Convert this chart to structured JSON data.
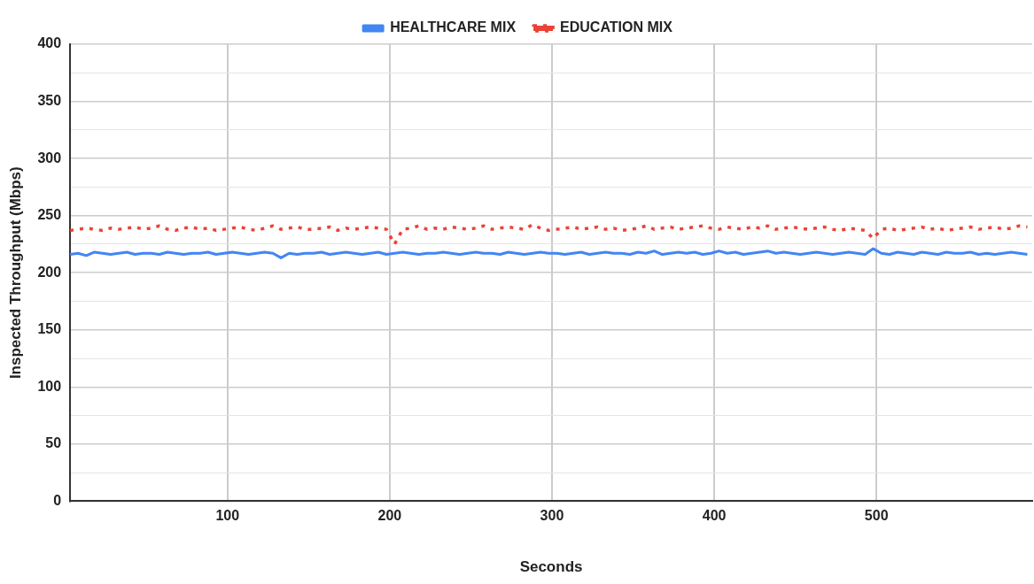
{
  "chart_data": {
    "type": "line",
    "xlabel": "Seconds",
    "ylabel": "Inspected Throughput (Mbps)",
    "x": [
      3,
      8,
      13,
      18,
      23,
      28,
      33,
      38,
      43,
      48,
      53,
      58,
      63,
      68,
      73,
      78,
      83,
      88,
      93,
      98,
      103,
      108,
      113,
      118,
      123,
      128,
      133,
      138,
      143,
      148,
      153,
      158,
      163,
      168,
      173,
      178,
      183,
      188,
      193,
      198,
      203,
      208,
      213,
      218,
      223,
      228,
      233,
      238,
      243,
      248,
      253,
      258,
      263,
      268,
      273,
      278,
      283,
      288,
      293,
      298,
      303,
      308,
      313,
      318,
      323,
      328,
      333,
      338,
      343,
      348,
      353,
      358,
      363,
      368,
      373,
      378,
      383,
      388,
      393,
      398,
      403,
      408,
      413,
      418,
      423,
      428,
      433,
      438,
      443,
      448,
      453,
      458,
      463,
      468,
      473,
      478,
      483,
      488,
      493,
      498,
      503,
      508,
      513,
      518,
      523,
      528,
      533,
      538,
      543,
      548,
      553,
      558,
      563,
      568,
      573,
      578,
      583,
      588,
      593
    ],
    "series": [
      {
        "name": "HEALTHCARE MIX",
        "color": "#4285f4",
        "line_style": "solid",
        "values": [
          216,
          217,
          215,
          218,
          217,
          216,
          217,
          218,
          216,
          217,
          217,
          216,
          218,
          217,
          216,
          217,
          217,
          218,
          216,
          217,
          218,
          217,
          216,
          217,
          218,
          217,
          213,
          217,
          216,
          217,
          217,
          218,
          216,
          217,
          218,
          217,
          216,
          217,
          218,
          216,
          217,
          218,
          217,
          216,
          217,
          217,
          218,
          217,
          216,
          217,
          218,
          217,
          217,
          216,
          218,
          217,
          216,
          217,
          218,
          217,
          217,
          216,
          217,
          218,
          216,
          217,
          218,
          217,
          217,
          216,
          218,
          217,
          219,
          216,
          217,
          218,
          217,
          218,
          216,
          217,
          219,
          217,
          218,
          216,
          217,
          218,
          219,
          217,
          218,
          217,
          216,
          217,
          218,
          217,
          216,
          217,
          218,
          217,
          216,
          221,
          217,
          216,
          218,
          217,
          216,
          218,
          217,
          216,
          218,
          217,
          217,
          218,
          216,
          217,
          216,
          217,
          218,
          217,
          216
        ]
      },
      {
        "name": "EDUCATION MIX",
        "color": "#ea4335",
        "line_style": "dotted",
        "values": [
          237,
          238,
          239,
          238,
          237,
          239,
          238,
          239,
          240,
          238,
          239,
          241,
          238,
          237,
          239,
          240,
          238,
          239,
          237,
          238,
          239,
          240,
          238,
          237,
          239,
          241,
          238,
          239,
          240,
          238,
          238,
          239,
          240,
          237,
          239,
          238,
          239,
          240,
          239,
          238,
          225,
          238,
          239,
          241,
          238,
          239,
          238,
          240,
          239,
          238,
          239,
          241,
          238,
          239,
          240,
          239,
          238,
          242,
          239,
          237,
          238,
          239,
          240,
          238,
          239,
          240,
          238,
          239,
          237,
          238,
          239,
          241,
          238,
          239,
          240,
          238,
          239,
          240,
          241,
          239,
          238,
          240,
          239,
          238,
          240,
          239,
          241,
          238,
          239,
          240,
          239,
          238,
          239,
          240,
          238,
          237,
          239,
          238,
          237,
          230,
          238,
          239,
          237,
          238,
          239,
          240,
          238,
          239,
          237,
          238,
          239,
          240,
          238,
          239,
          240,
          238,
          239,
          241,
          240
        ]
      }
    ],
    "xlim": [
      3,
      596
    ],
    "xticks": [
      100,
      200,
      300,
      400,
      500
    ],
    "ylim": [
      0,
      400
    ],
    "yticks": [
      0,
      {
        "value": 25,
        "label": null
      },
      50,
      {
        "value": 75,
        "label": null
      },
      100,
      {
        "value": 125,
        "label": null
      },
      150,
      {
        "value": 175,
        "label": null
      },
      200,
      {
        "value": 225,
        "label": null
      },
      250,
      {
        "value": 275,
        "label": null
      },
      300,
      {
        "value": 325,
        "label": null
      },
      350,
      {
        "value": 375,
        "label": null
      },
      400
    ],
    "grid": true,
    "legend": "top",
    "marker": "none"
  }
}
